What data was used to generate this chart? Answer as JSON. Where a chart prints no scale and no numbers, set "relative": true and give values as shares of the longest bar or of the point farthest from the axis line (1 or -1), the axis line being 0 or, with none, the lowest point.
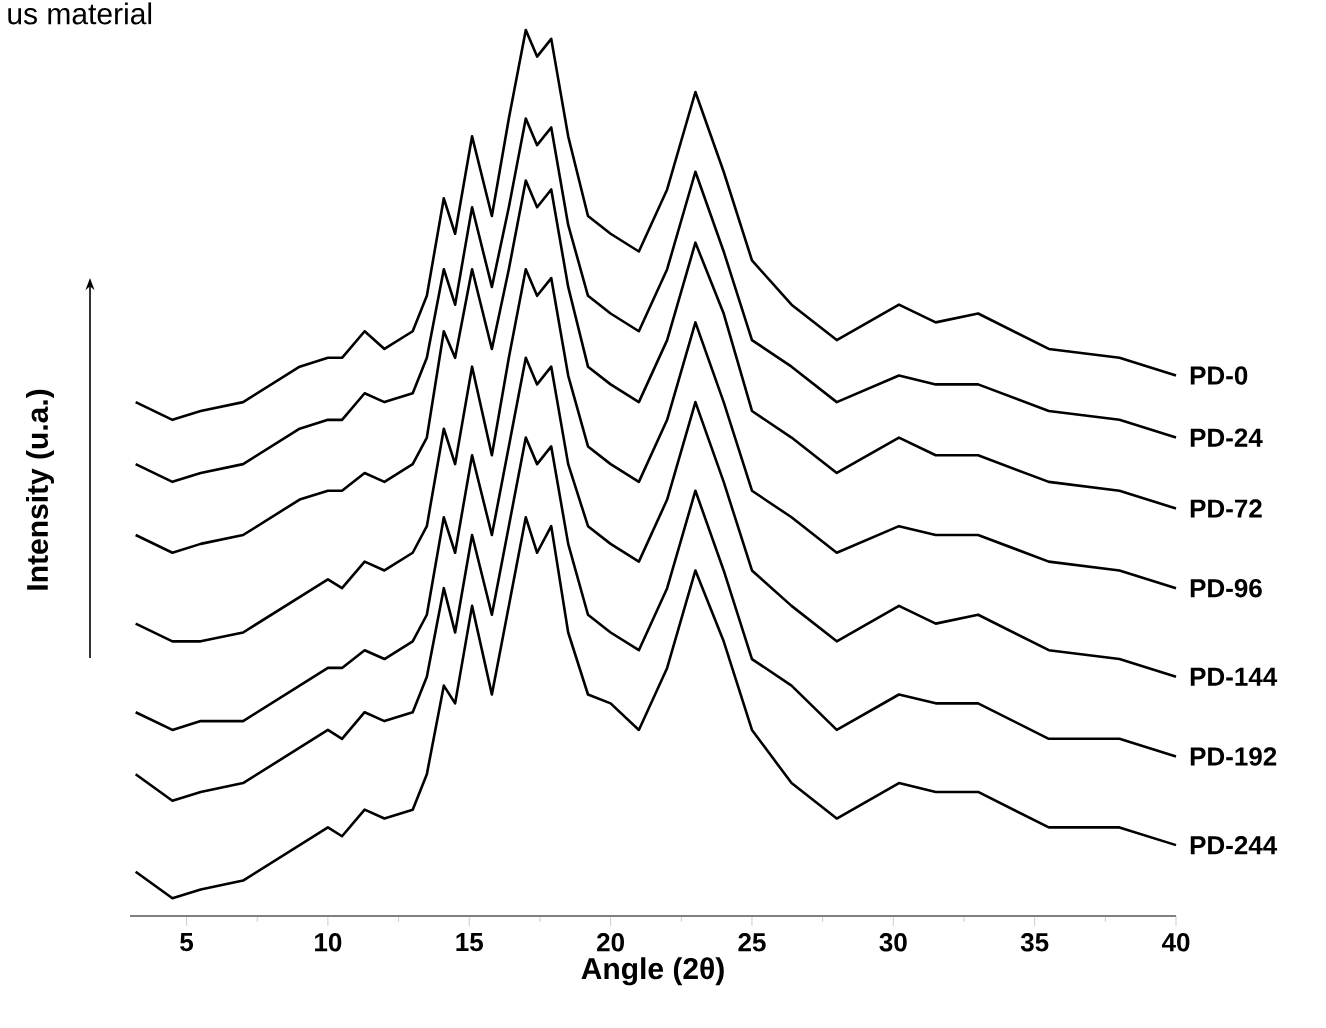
{
  "chart_data": {
    "type": "line",
    "relative": true,
    "xlabel": "Angle (2θ)",
    "ylabel": "Intensity (u.a.)",
    "annotations": [
      "us material"
    ],
    "legend": false,
    "marker": "none",
    "line_style": "solid",
    "grid": false,
    "xlim": [
      3,
      40
    ],
    "xticks": [
      5,
      10,
      15,
      20,
      25,
      30,
      35,
      40
    ],
    "x": [
      3.2,
      4.5,
      5.5,
      7,
      9,
      10,
      10.5,
      11.3,
      12,
      13,
      13.5,
      14.1,
      14.5,
      15.1,
      15.8,
      16.4,
      17,
      17.4,
      17.9,
      18.5,
      19.2,
      20,
      21,
      22,
      23,
      24,
      25,
      26.4,
      28,
      30.2,
      31.5,
      33,
      35.5,
      38,
      40
    ],
    "series": [
      {
        "name": "PD-0",
        "color": "#000000",
        "values": [
          0.58,
          0.56,
          0.57,
          0.58,
          0.62,
          0.63,
          0.63,
          0.66,
          0.64,
          0.66,
          0.7,
          0.81,
          0.77,
          0.88,
          0.79,
          0.9,
          1.0,
          0.97,
          0.99,
          0.88,
          0.79,
          0.77,
          0.75,
          0.82,
          0.93,
          0.84,
          0.74,
          0.69,
          0.65,
          0.69,
          0.67,
          0.68,
          0.64,
          0.63,
          0.61
        ]
      },
      {
        "name": "PD-24",
        "color": "#000000",
        "values": [
          0.51,
          0.49,
          0.5,
          0.51,
          0.55,
          0.56,
          0.56,
          0.59,
          0.58,
          0.59,
          0.63,
          0.73,
          0.69,
          0.8,
          0.71,
          0.8,
          0.9,
          0.87,
          0.89,
          0.78,
          0.7,
          0.68,
          0.66,
          0.73,
          0.84,
          0.75,
          0.65,
          0.62,
          0.58,
          0.61,
          0.6,
          0.6,
          0.57,
          0.56,
          0.54
        ]
      },
      {
        "name": "PD-72",
        "color": "#000000",
        "values": [
          0.43,
          0.41,
          0.42,
          0.43,
          0.47,
          0.48,
          0.48,
          0.5,
          0.49,
          0.51,
          0.54,
          0.66,
          0.63,
          0.73,
          0.64,
          0.73,
          0.83,
          0.8,
          0.82,
          0.71,
          0.62,
          0.6,
          0.58,
          0.65,
          0.76,
          0.68,
          0.57,
          0.54,
          0.5,
          0.54,
          0.52,
          0.52,
          0.49,
          0.48,
          0.46
        ]
      },
      {
        "name": "PD-96",
        "color": "#000000",
        "values": [
          0.33,
          0.31,
          0.31,
          0.32,
          0.36,
          0.38,
          0.37,
          0.4,
          0.39,
          0.41,
          0.44,
          0.55,
          0.51,
          0.62,
          0.52,
          0.63,
          0.73,
          0.7,
          0.72,
          0.61,
          0.53,
          0.51,
          0.49,
          0.56,
          0.67,
          0.58,
          0.48,
          0.45,
          0.41,
          0.44,
          0.43,
          0.43,
          0.4,
          0.39,
          0.37
        ]
      },
      {
        "name": "PD-144",
        "color": "#000000",
        "values": [
          0.23,
          0.21,
          0.22,
          0.22,
          0.26,
          0.28,
          0.28,
          0.3,
          0.29,
          0.31,
          0.34,
          0.45,
          0.41,
          0.52,
          0.43,
          0.53,
          0.63,
          0.6,
          0.62,
          0.51,
          0.44,
          0.42,
          0.4,
          0.47,
          0.58,
          0.49,
          0.39,
          0.35,
          0.31,
          0.35,
          0.33,
          0.34,
          0.3,
          0.29,
          0.27
        ]
      },
      {
        "name": "PD-192",
        "color": "#000000",
        "values": [
          0.16,
          0.13,
          0.14,
          0.15,
          0.19,
          0.21,
          0.2,
          0.23,
          0.22,
          0.23,
          0.27,
          0.37,
          0.32,
          0.43,
          0.34,
          0.44,
          0.54,
          0.51,
          0.53,
          0.42,
          0.34,
          0.32,
          0.3,
          0.37,
          0.48,
          0.39,
          0.29,
          0.26,
          0.21,
          0.25,
          0.24,
          0.24,
          0.2,
          0.2,
          0.18
        ]
      },
      {
        "name": "PD-244",
        "color": "#000000",
        "values": [
          0.05,
          0.02,
          0.03,
          0.04,
          0.08,
          0.1,
          0.09,
          0.12,
          0.11,
          0.12,
          0.16,
          0.26,
          0.24,
          0.35,
          0.25,
          0.35,
          0.45,
          0.41,
          0.44,
          0.32,
          0.25,
          0.24,
          0.21,
          0.28,
          0.39,
          0.31,
          0.21,
          0.15,
          0.11,
          0.15,
          0.14,
          0.14,
          0.1,
          0.1,
          0.08
        ]
      }
    ]
  }
}
